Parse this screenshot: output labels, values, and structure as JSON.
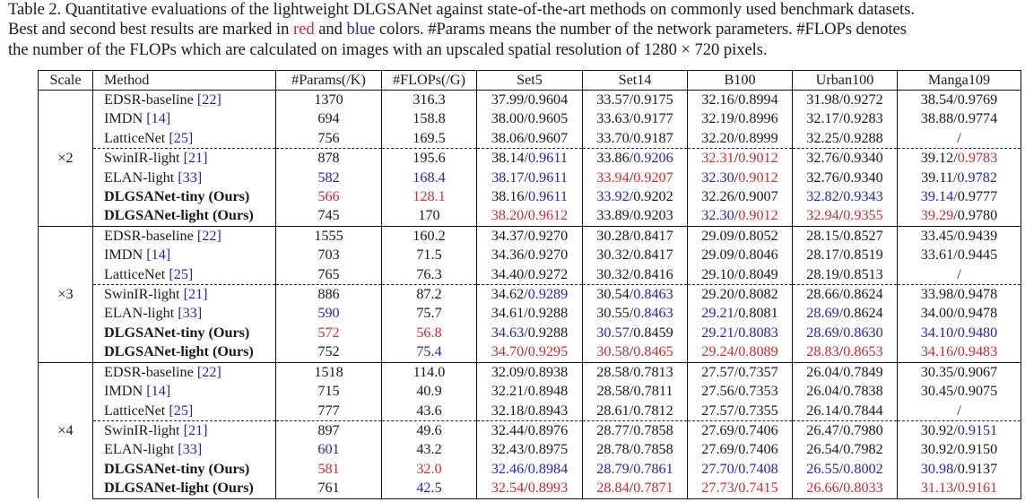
{
  "caption": {
    "line1": "Table 2.  Quantitative evaluations of the lightweight DLGSANet against state-of-the-art methods on commonly used benchmark datasets.",
    "line2_a": "Best and second best results are marked in ",
    "line2_red": "red",
    "line2_b": " and ",
    "line2_blue": "blue",
    "line2_c": " colors.  #Params means the number of the network parameters.  #FLOPs denotes",
    "line3": "the number of the FLOPs which are calculated on images with an upscaled spatial resolution of 1280 × 720 pixels."
  },
  "colors": {
    "best": "#d42a2a",
    "second": "#2424b8",
    "text": "#1a1a1a"
  },
  "table": {
    "headers": [
      "Scale",
      "Method",
      "#Params(/K)",
      "#FLOPs(/G)",
      "Set5",
      "Set14",
      "B100",
      "Urban100",
      "Manga109"
    ],
    "groups": [
      {
        "scale": "×2",
        "rows": [
          {
            "name": "EDSR-baseline ",
            "ref": "[22]",
            "bold": false,
            "params": "1370",
            "params_c": "",
            "flops": "316.3",
            "flops_c": "",
            "set5": [
              "37.99",
              "",
              "0.9604",
              ""
            ],
            "set14": [
              "33.57",
              "",
              "0.9175",
              ""
            ],
            "b100": [
              "32.16",
              "",
              "0.8994",
              ""
            ],
            "urban": [
              "31.98",
              "",
              "0.9272",
              ""
            ],
            "manga": [
              "38.54",
              "",
              "0.9769",
              ""
            ]
          },
          {
            "name": "IMDN ",
            "ref": "[14]",
            "bold": false,
            "params": "694",
            "params_c": "",
            "flops": "158.8",
            "flops_c": "",
            "set5": [
              "38.00",
              "",
              "0.9605",
              ""
            ],
            "set14": [
              "33.63",
              "",
              "0.9177",
              ""
            ],
            "b100": [
              "32.19",
              "",
              "0.8996",
              ""
            ],
            "urban": [
              "32.17",
              "",
              "0.9283",
              ""
            ],
            "manga": [
              "38.88",
              "",
              "0.9774",
              ""
            ]
          },
          {
            "name": "LatticeNet ",
            "ref": "[25]",
            "bold": false,
            "params": "756",
            "params_c": "",
            "flops": "169.5",
            "flops_c": "",
            "set5": [
              "38.06",
              "",
              "0.9607",
              ""
            ],
            "set14": [
              "33.70",
              "",
              "0.9187",
              ""
            ],
            "b100": [
              "32.20",
              "",
              "0.8999",
              ""
            ],
            "urban": [
              "32.25",
              "",
              "0.9288",
              ""
            ],
            "manga": [
              "/",
              "",
              "",
              ""
            ]
          },
          {
            "name": "SwinIR-light ",
            "ref": "[21]",
            "bold": false,
            "params": "878",
            "params_c": "",
            "flops": "195.6",
            "flops_c": "",
            "set5": [
              "38.14",
              "",
              "0.9611",
              "blue"
            ],
            "set14": [
              "33.86",
              "",
              "0.9206",
              "blue"
            ],
            "b100": [
              "32.31",
              "red",
              "0.9012",
              "red"
            ],
            "urban": [
              "32.76",
              "",
              "0.9340",
              ""
            ],
            "manga": [
              "39.12",
              "",
              "0.9783",
              "red"
            ]
          },
          {
            "name": "ELAN-light ",
            "ref": "[33]",
            "bold": false,
            "params": "582",
            "params_c": "blue",
            "flops": "168.4",
            "flops_c": "blue",
            "set5": [
              "38.17",
              "blue",
              "0.9611",
              "blue"
            ],
            "set14": [
              "33.94",
              "red",
              "0.9207",
              "red"
            ],
            "b100": [
              "32.30",
              "blue",
              "0.9012",
              "red"
            ],
            "urban": [
              "32.76",
              "",
              "0.9340",
              ""
            ],
            "manga": [
              "39.11",
              "",
              "0.9782",
              "blue"
            ]
          },
          {
            "name": "DLGSANet-tiny (Ours)",
            "ref": "",
            "bold": true,
            "params": "566",
            "params_c": "red",
            "flops": "128.1",
            "flops_c": "red",
            "set5": [
              "38.16",
              "",
              "0.9611",
              "blue"
            ],
            "set14": [
              "33.92",
              "blue",
              "0.9202",
              ""
            ],
            "b100": [
              "32.26",
              "",
              "0.9007",
              ""
            ],
            "urban": [
              "32.82",
              "blue",
              "0.9343",
              "blue"
            ],
            "manga": [
              "39.14",
              "blue",
              "0.9777",
              ""
            ]
          },
          {
            "name": "DLGSANet-light (Ours)",
            "ref": "",
            "bold": true,
            "params": "745",
            "params_c": "",
            "flops": "170",
            "flops_c": "",
            "set5": [
              "38.20",
              "red",
              "0.9612",
              "red"
            ],
            "set14": [
              "33.89",
              "",
              "0.9203",
              ""
            ],
            "b100": [
              "32.30",
              "blue",
              "0.9012",
              "red"
            ],
            "urban": [
              "32.94",
              "red",
              "0.9355",
              "red"
            ],
            "manga": [
              "39.29",
              "red",
              "0.9780",
              ""
            ]
          }
        ]
      },
      {
        "scale": "×3",
        "rows": [
          {
            "name": "EDSR-baseline ",
            "ref": "[22]",
            "bold": false,
            "params": "1555",
            "params_c": "",
            "flops": "160.2",
            "flops_c": "",
            "set5": [
              "34.37",
              "",
              "0.9270",
              ""
            ],
            "set14": [
              "30.28",
              "",
              "0.8417",
              ""
            ],
            "b100": [
              "29.09",
              "",
              "0.8052",
              ""
            ],
            "urban": [
              "28.15",
              "",
              "0.8527",
              ""
            ],
            "manga": [
              "33.45",
              "",
              "0.9439",
              ""
            ]
          },
          {
            "name": "IMDN ",
            "ref": "[14]",
            "bold": false,
            "params": "703",
            "params_c": "",
            "flops": "71.5",
            "flops_c": "",
            "set5": [
              "34.36",
              "",
              "0.9270",
              ""
            ],
            "set14": [
              "30.32",
              "",
              "0.8417",
              ""
            ],
            "b100": [
              "29.09",
              "",
              "0.8046",
              ""
            ],
            "urban": [
              "28.17",
              "",
              "0.8519",
              ""
            ],
            "manga": [
              "33.61",
              "",
              "0.9445",
              ""
            ]
          },
          {
            "name": "LatticeNet ",
            "ref": "[25]",
            "bold": false,
            "params": "765",
            "params_c": "",
            "flops": "76.3",
            "flops_c": "",
            "set5": [
              "34.40",
              "",
              "0.9272",
              ""
            ],
            "set14": [
              "30.32",
              "",
              "0.8416",
              ""
            ],
            "b100": [
              "29.10",
              "",
              "0.8049",
              ""
            ],
            "urban": [
              "28.19",
              "",
              "0.8513",
              ""
            ],
            "manga": [
              "/",
              "",
              "",
              ""
            ]
          },
          {
            "name": "SwinIR-light ",
            "ref": "[21]",
            "bold": false,
            "params": "886",
            "params_c": "",
            "flops": "87.2",
            "flops_c": "",
            "set5": [
              "34.62",
              "",
              "0.9289",
              "blue"
            ],
            "set14": [
              "30.54",
              "",
              "0.8463",
              "blue"
            ],
            "b100": [
              "29.20",
              "",
              "0.8082",
              ""
            ],
            "urban": [
              "28.66",
              "",
              "0.8624",
              ""
            ],
            "manga": [
              "33.98",
              "",
              "0.9478",
              ""
            ]
          },
          {
            "name": "ELAN-light ",
            "ref": "[33]",
            "bold": false,
            "params": "590",
            "params_c": "blue",
            "flops": "75.7",
            "flops_c": "",
            "set5": [
              "34.61",
              "",
              "0.9288",
              ""
            ],
            "set14": [
              "30.55",
              "",
              "0.8463",
              "blue"
            ],
            "b100": [
              "29.21",
              "blue",
              "0.8081",
              ""
            ],
            "urban": [
              "28.69",
              "blue",
              "0.8624",
              ""
            ],
            "manga": [
              "34.00",
              "",
              "0.9478",
              ""
            ]
          },
          {
            "name": "DLGSANet-tiny (Ours)",
            "ref": "",
            "bold": true,
            "params": "572",
            "params_c": "red",
            "flops": "56.8",
            "flops_c": "red",
            "set5": [
              "34.63",
              "blue",
              "0.9288",
              ""
            ],
            "set14": [
              "30.57",
              "blue",
              "0.8459",
              ""
            ],
            "b100": [
              "29.21",
              "blue",
              "0.8083",
              "blue"
            ],
            "urban": [
              "28.69",
              "blue",
              "0.8630",
              "blue"
            ],
            "manga": [
              "34.10",
              "blue",
              "0.9480",
              "blue"
            ]
          },
          {
            "name": "DLGSANet-light (Ours)",
            "ref": "",
            "bold": true,
            "params": "752",
            "params_c": "",
            "flops": "75.4",
            "flops_c": "blue",
            "set5": [
              "34.70",
              "red",
              "0.9295",
              "red"
            ],
            "set14": [
              "30.58",
              "red",
              "0.8465",
              "red"
            ],
            "b100": [
              "29.24",
              "red",
              "0.8089",
              "red"
            ],
            "urban": [
              "28.83",
              "red",
              "0.8653",
              "red"
            ],
            "manga": [
              "34.16",
              "red",
              "0.9483",
              "red"
            ]
          }
        ]
      },
      {
        "scale": "×4",
        "rows": [
          {
            "name": "EDSR-baseline ",
            "ref": "[22]",
            "bold": false,
            "params": "1518",
            "params_c": "",
            "flops": "114.0",
            "flops_c": "",
            "set5": [
              "32.09",
              "",
              "0.8938",
              ""
            ],
            "set14": [
              "28.58",
              "",
              "0.7813",
              ""
            ],
            "b100": [
              "27.57",
              "",
              "0.7357",
              ""
            ],
            "urban": [
              "26.04",
              "",
              "0.7849",
              ""
            ],
            "manga": [
              "30.35",
              "",
              "0.9067",
              ""
            ]
          },
          {
            "name": "IMDN ",
            "ref": "[14]",
            "bold": false,
            "params": "715",
            "params_c": "",
            "flops": "40.9",
            "flops_c": "",
            "set5": [
              "32.21",
              "",
              "0.8948",
              ""
            ],
            "set14": [
              "28.58",
              "",
              "0.7811",
              ""
            ],
            "b100": [
              "27.56",
              "",
              "0.7353",
              ""
            ],
            "urban": [
              "26.04",
              "",
              "0.7838",
              ""
            ],
            "manga": [
              "30.45",
              "",
              "0.9075",
              ""
            ]
          },
          {
            "name": "LatticeNet ",
            "ref": "[25]",
            "bold": false,
            "params": "777",
            "params_c": "",
            "flops": "43.6",
            "flops_c": "",
            "set5": [
              "32.18",
              "",
              "0.8943",
              ""
            ],
            "set14": [
              "28.61",
              "",
              "0.7812",
              ""
            ],
            "b100": [
              "27.57",
              "",
              "0.7355",
              ""
            ],
            "urban": [
              "26.14",
              "",
              "0.7844",
              ""
            ],
            "manga": [
              "/",
              "",
              "",
              ""
            ]
          },
          {
            "name": "SwinIR-light ",
            "ref": "[21]",
            "bold": false,
            "params": "897",
            "params_c": "",
            "flops": "49.6",
            "flops_c": "",
            "set5": [
              "32.44",
              "",
              "0.8976",
              ""
            ],
            "set14": [
              "28.77",
              "",
              "0.7858",
              ""
            ],
            "b100": [
              "27.69",
              "",
              "0.7406",
              ""
            ],
            "urban": [
              "26.47",
              "",
              "0.7980",
              ""
            ],
            "manga": [
              "30.92",
              "",
              "0.9151",
              "blue"
            ]
          },
          {
            "name": "ELAN-light ",
            "ref": "[33]",
            "bold": false,
            "params": "601",
            "params_c": "blue",
            "flops": "43.2",
            "flops_c": "",
            "set5": [
              "32.43",
              "",
              "0.8975",
              ""
            ],
            "set14": [
              "28.78",
              "",
              "0.7858",
              ""
            ],
            "b100": [
              "27.69",
              "",
              "0.7406",
              ""
            ],
            "urban": [
              "26.54",
              "",
              "0.7982",
              ""
            ],
            "manga": [
              "30.92",
              "",
              "0.9150",
              ""
            ]
          },
          {
            "name": "DLGSANet-tiny (Ours)",
            "ref": "",
            "bold": true,
            "params": "581",
            "params_c": "red",
            "flops": "32.0",
            "flops_c": "red",
            "set5": [
              "32.46",
              "blue",
              "0.8984",
              "blue"
            ],
            "set14": [
              "28.79",
              "blue",
              "0.7861",
              "blue"
            ],
            "b100": [
              "27.70",
              "blue",
              "0.7408",
              "blue"
            ],
            "urban": [
              "26.55",
              "blue",
              "0.8002",
              "blue"
            ],
            "manga": [
              "30.98",
              "blue",
              "0.9137",
              ""
            ]
          },
          {
            "name": "DLGSANet-light (Ours)",
            "ref": "",
            "bold": true,
            "params": "761",
            "params_c": "",
            "flops": "42.5",
            "flops_c": "blue",
            "set5": [
              "32.54",
              "red",
              "0.8993",
              "red"
            ],
            "set14": [
              "28.84",
              "red",
              "0.7871",
              "red"
            ],
            "b100": [
              "27.73",
              "red",
              "0.7415",
              "red"
            ],
            "urban": [
              "26.66",
              "red",
              "0.8033",
              "red"
            ],
            "manga": [
              "31.13",
              "red",
              "0.9161",
              "red"
            ]
          }
        ]
      }
    ]
  }
}
